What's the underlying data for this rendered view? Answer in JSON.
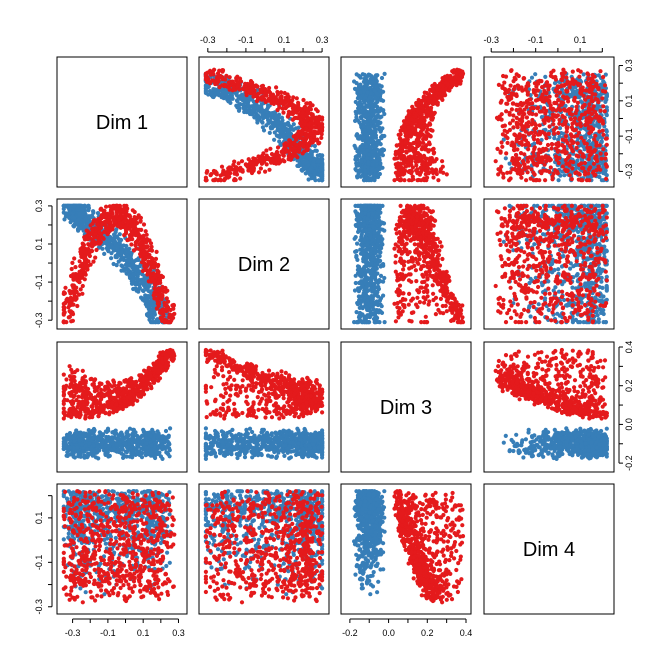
{
  "chart_data": {
    "type": "scatter",
    "title": "",
    "variables": [
      "Dim 1",
      "Dim 2",
      "Dim 3",
      "Dim 4"
    ],
    "groups": [
      {
        "color": "#377EB8"
      },
      {
        "color": "#E41A1C"
      }
    ],
    "axis_ranges": {
      "Dim 1": [
        -0.36,
        0.32
      ],
      "Dim 2": [
        -0.32,
        0.31
      ],
      "Dim 3": [
        -0.22,
        0.4
      ],
      "Dim 4": [
        -0.31,
        0.23
      ]
    },
    "ticks": {
      "Dim 1": [
        -0.3,
        -0.2,
        -0.1,
        0.0,
        0.1,
        0.2,
        0.3
      ],
      "Dim 2": [
        -0.3,
        -0.2,
        -0.1,
        0.0,
        0.1,
        0.2,
        0.3
      ],
      "Dim 3": [
        -0.2,
        -0.1,
        0.0,
        0.1,
        0.2,
        0.3,
        0.4
      ],
      "Dim 4": [
        -0.3,
        -0.2,
        -0.1,
        0.0,
        0.1,
        0.2
      ]
    },
    "tick_labels": {
      "Dim 1": [
        "-0.3",
        "-0.1",
        "0.1",
        "0.3"
      ],
      "Dim 2": [
        "-0.3",
        "-0.1",
        "0.1",
        "0.3"
      ],
      "Dim 3": [
        "-0.2",
        "0.0",
        "0.2",
        "0.4"
      ],
      "Dim 4": [
        "-0.3",
        "-0.1",
        "0.1"
      ]
    },
    "axes": {
      "top": [
        "Dim 2",
        "Dim 4"
      ],
      "bottom": [
        "Dim 1",
        "Dim 3"
      ],
      "left": [
        "Dim 2",
        "Dim 4"
      ],
      "right": [
        "Dim 1",
        "Dim 3"
      ]
    },
    "points_per_group": 700,
    "grid": false,
    "legend": "none"
  }
}
